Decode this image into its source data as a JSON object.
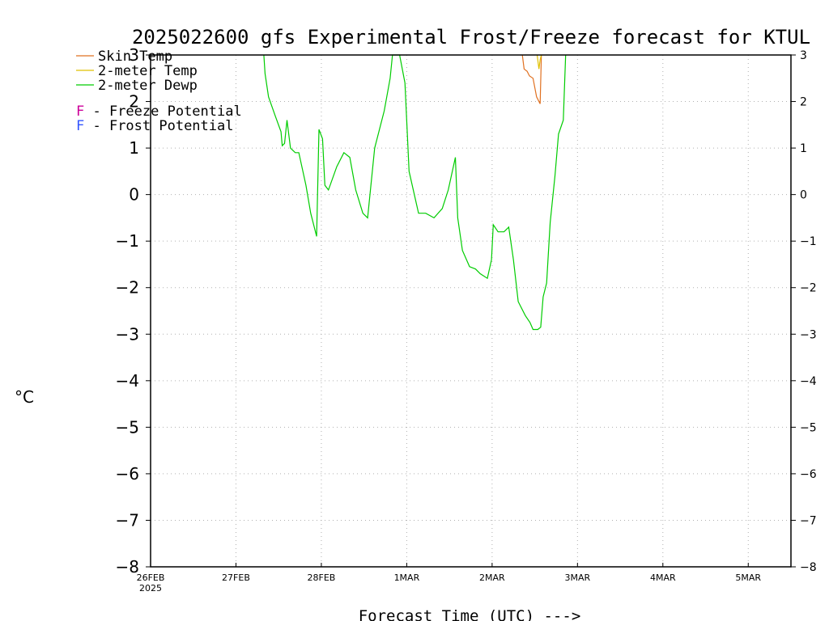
{
  "chart_data": {
    "type": "line",
    "title": "2025022600 gfs Experimental Frost/Freeze forecast for KTUL",
    "xlabel": "Forecast Time (UTC) --->",
    "ylabel": "°C",
    "ylim": [
      -8,
      3
    ],
    "yticks": [
      3,
      2,
      1,
      0,
      -1,
      -2,
      -3,
      -4,
      -5,
      -6,
      -7,
      -8
    ],
    "xlim": [
      "2025-02-26T00:00",
      "2025-03-05T12:00"
    ],
    "xticks": [
      {
        "label": "26FEB",
        "sub": "2025",
        "x": "2025-02-26T00:00"
      },
      {
        "label": "27FEB",
        "sub": "",
        "x": "2025-02-27T00:00"
      },
      {
        "label": "28FEB",
        "sub": "",
        "x": "2025-02-28T00:00"
      },
      {
        "label": "1MAR",
        "sub": "",
        "x": "2025-03-01T00:00"
      },
      {
        "label": "2MAR",
        "sub": "",
        "x": "2025-03-02T00:00"
      },
      {
        "label": "3MAR",
        "sub": "",
        "x": "2025-03-03T00:00"
      },
      {
        "label": "4MAR",
        "sub": "",
        "x": "2025-03-04T00:00"
      },
      {
        "label": "5MAR",
        "sub": "",
        "x": "2025-03-05T00:00"
      }
    ],
    "grid": true,
    "legend": [
      {
        "label": "Skin Temp",
        "color": "#e07020",
        "kind": "line"
      },
      {
        "label": "2-meter Temp",
        "color": "#e0c000",
        "kind": "line"
      },
      {
        "label": "2-meter Dewp",
        "color": "#00cc00",
        "kind": "line"
      }
    ],
    "markers_legend": [
      {
        "symbol": "F",
        "label": " - Freeze Potential",
        "color": "#cc0099"
      },
      {
        "symbol": "F",
        "label": " - Frost Potential",
        "color": "#3355ff"
      }
    ],
    "series": [
      {
        "name": "Skin Temp",
        "color": "#e07020",
        "points": [
          [
            "2025-03-02T08:30",
            3.0
          ],
          [
            "2025-03-02T09:00",
            2.7
          ],
          [
            "2025-03-02T09:50",
            2.65
          ],
          [
            "2025-03-02T10:30",
            2.55
          ],
          [
            "2025-03-02T11:30",
            2.5
          ],
          [
            "2025-03-02T12:30",
            2.1
          ],
          [
            "2025-03-02T13:30",
            1.95
          ],
          [
            "2025-03-02T13:50",
            3.0
          ]
        ]
      },
      {
        "name": "2-meter Temp",
        "color": "#e0c000",
        "points": [
          [
            "2025-03-02T12:40",
            3.0
          ],
          [
            "2025-03-02T13:10",
            2.7
          ],
          [
            "2025-03-02T13:30",
            2.9
          ],
          [
            "2025-03-02T13:50",
            3.0
          ]
        ]
      },
      {
        "name": "2-meter Dewp",
        "color": "#00cc00",
        "points": [
          [
            "2025-02-27T07:50",
            3.0
          ],
          [
            "2025-02-27T08:10",
            2.6
          ],
          [
            "2025-02-27T09:10",
            2.1
          ],
          [
            "2025-02-27T11:00",
            1.7
          ],
          [
            "2025-02-27T12:40",
            1.35
          ],
          [
            "2025-02-27T13:00",
            1.05
          ],
          [
            "2025-02-27T13:40",
            1.1
          ],
          [
            "2025-02-27T14:20",
            1.6
          ],
          [
            "2025-02-27T15:20",
            1.0
          ],
          [
            "2025-02-27T16:40",
            0.9
          ],
          [
            "2025-02-27T17:40",
            0.9
          ],
          [
            "2025-02-27T19:40",
            0.2
          ],
          [
            "2025-02-27T21:00",
            -0.4
          ],
          [
            "2025-02-27T22:40",
            -0.9
          ],
          [
            "2025-02-27T23:20",
            1.4
          ],
          [
            "2025-02-28T00:20",
            1.2
          ],
          [
            "2025-02-28T01:00",
            0.2
          ],
          [
            "2025-02-28T02:00",
            0.1
          ],
          [
            "2025-02-28T04:20",
            0.6
          ],
          [
            "2025-02-28T06:20",
            0.9
          ],
          [
            "2025-02-28T08:00",
            0.8
          ],
          [
            "2025-02-28T09:40",
            0.1
          ],
          [
            "2025-02-28T11:40",
            -0.4
          ],
          [
            "2025-02-28T13:00",
            -0.5
          ],
          [
            "2025-02-28T15:00",
            1.0
          ],
          [
            "2025-02-28T17:40",
            1.8
          ],
          [
            "2025-02-28T19:20",
            2.5
          ],
          [
            "2025-02-28T20:00",
            3.0
          ],
          [
            "2025-02-28T22:00",
            3.0
          ],
          [
            "2025-02-28T23:30",
            2.4
          ],
          [
            "2025-03-01T00:40",
            0.5
          ],
          [
            "2025-03-01T03:20",
            -0.4
          ],
          [
            "2025-03-01T05:20",
            -0.4
          ],
          [
            "2025-03-01T07:40",
            -0.5
          ],
          [
            "2025-03-01T10:00",
            -0.3
          ],
          [
            "2025-03-01T11:40",
            0.1
          ],
          [
            "2025-03-01T13:40",
            0.8
          ],
          [
            "2025-03-01T14:20",
            -0.5
          ],
          [
            "2025-03-01T15:40",
            -1.2
          ],
          [
            "2025-03-01T17:40",
            -1.55
          ],
          [
            "2025-03-01T19:20",
            -1.6
          ],
          [
            "2025-03-01T20:40",
            -1.7
          ],
          [
            "2025-03-01T22:40",
            -1.8
          ],
          [
            "2025-03-01T23:50",
            -1.4
          ],
          [
            "2025-03-02T00:20",
            -0.65
          ],
          [
            "2025-03-02T01:40",
            -0.8
          ],
          [
            "2025-03-02T03:20",
            -0.8
          ],
          [
            "2025-03-02T04:40",
            -0.7
          ],
          [
            "2025-03-02T06:00",
            -1.4
          ],
          [
            "2025-03-02T07:20",
            -2.3
          ],
          [
            "2025-03-02T09:20",
            -2.6
          ],
          [
            "2025-03-02T10:40",
            -2.75
          ],
          [
            "2025-03-02T11:30",
            -2.9
          ],
          [
            "2025-03-02T12:50",
            -2.9
          ],
          [
            "2025-03-02T13:40",
            -2.85
          ],
          [
            "2025-03-02T14:20",
            -2.2
          ],
          [
            "2025-03-02T15:20",
            -1.9
          ],
          [
            "2025-03-02T16:20",
            -0.6
          ],
          [
            "2025-03-02T17:40",
            0.4
          ],
          [
            "2025-03-02T18:40",
            1.3
          ],
          [
            "2025-03-02T20:00",
            1.6
          ],
          [
            "2025-03-02T20:40",
            3.0
          ]
        ]
      }
    ]
  }
}
